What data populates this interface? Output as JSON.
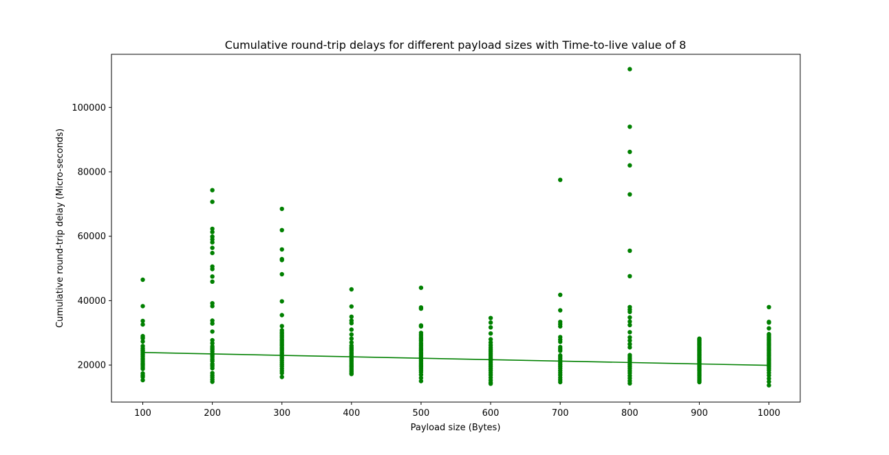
{
  "chart_data": {
    "type": "scatter",
    "title": "Cumulative round-trip delays for different payload sizes with Time-to-live value of 8",
    "xlabel": "Payload size (Bytes)",
    "ylabel": "Cumulative round-trip delay (Micro-seconds)",
    "xlim": [
      55,
      1045
    ],
    "ylim": [
      8500,
      116500
    ],
    "xticks": [
      100,
      200,
      300,
      400,
      500,
      600,
      700,
      800,
      900,
      1000
    ],
    "yticks": [
      20000,
      40000,
      60000,
      80000,
      100000
    ],
    "grid": false,
    "legend": "none",
    "marker_color": "#008000",
    "line_color": "#008000",
    "series": [
      {
        "x": 100,
        "values": [
          46500,
          38300,
          33700,
          32600,
          29000,
          28600,
          28300,
          27300,
          25900,
          25200,
          24600,
          24300,
          23800,
          23300,
          22700,
          22100,
          21600,
          21000,
          20400,
          20000,
          19400,
          18800,
          17400,
          16800,
          16300,
          15300
        ]
      },
      {
        "x": 200,
        "values": [
          74300,
          70700,
          62300,
          61300,
          59900,
          59000,
          58100,
          56400,
          54800,
          50600,
          49800,
          47500,
          45900,
          39200,
          38300,
          33800,
          32900,
          30400,
          27700,
          26800,
          25800,
          25300,
          24800,
          24200,
          23500,
          23000,
          22500,
          21800,
          21200,
          20300,
          19700,
          19000,
          17500,
          16800,
          16200,
          15500,
          14800
        ]
      },
      {
        "x": 300,
        "values": [
          68500,
          61900,
          55900,
          52900,
          52600,
          48200,
          39800,
          35500,
          32100,
          30800,
          30200,
          29700,
          29100,
          28600,
          28000,
          27500,
          27000,
          26500,
          26000,
          25500,
          25000,
          24500,
          24000,
          23500,
          23000,
          22500,
          22000,
          21400,
          20800,
          20200,
          19600,
          18900,
          18200,
          17500,
          16300
        ]
      },
      {
        "x": 400,
        "values": [
          43500,
          38200,
          35000,
          33800,
          33000,
          31000,
          29500,
          28200,
          27000,
          26000,
          25500,
          25000,
          24500,
          24000,
          23500,
          23000,
          22500,
          22000,
          21500,
          21000,
          20500,
          20000,
          19500,
          19000,
          18500,
          18000,
          17500,
          17200
        ]
      },
      {
        "x": 500,
        "values": [
          44000,
          37900,
          37500,
          32300,
          32000,
          30000,
          29300,
          28700,
          28100,
          27500,
          26800,
          26200,
          25600,
          25000,
          24500,
          24000,
          23500,
          23000,
          22500,
          22000,
          21500,
          21000,
          20500,
          20000,
          19500,
          19000,
          18400,
          17800,
          17000,
          16000,
          15000
        ]
      },
      {
        "x": 600,
        "values": [
          34600,
          33200,
          31700,
          29800,
          28000,
          27000,
          26200,
          25500,
          24900,
          24300,
          23700,
          23100,
          22500,
          21900,
          21300,
          20700,
          20100,
          19500,
          18900,
          18300,
          17600,
          16900,
          16100,
          15300,
          14600,
          14200
        ]
      },
      {
        "x": 700,
        "values": [
          77500,
          41800,
          37000,
          33400,
          32700,
          32000,
          28700,
          27900,
          27200,
          25600,
          25000,
          24400,
          23000,
          22500,
          22000,
          21400,
          20800,
          20200,
          19600,
          19000,
          18300,
          17600,
          16900,
          16100,
          15400,
          14700
        ]
      },
      {
        "x": 800,
        "values": [
          111900,
          94000,
          86200,
          82000,
          73000,
          55500,
          47600,
          38000,
          37200,
          36500,
          34800,
          33500,
          32400,
          30200,
          28600,
          27600,
          26500,
          25500,
          23100,
          22500,
          21900,
          21300,
          20700,
          20100,
          19500,
          18900,
          18200,
          17500,
          16700,
          15900,
          15100,
          14300
        ]
      },
      {
        "x": 900,
        "values": [
          28200,
          27900,
          27600,
          27300,
          27000,
          26700,
          26400,
          26100,
          25800,
          25500,
          25200,
          24900,
          24600,
          24300,
          24000,
          23700,
          23400,
          23100,
          22800,
          22500,
          22200,
          21900,
          21600,
          21300,
          21000,
          20600,
          20200,
          19800,
          19400,
          19000,
          18600,
          18200,
          17700,
          17200,
          16700,
          16200,
          15700,
          15200,
          14700
        ]
      },
      {
        "x": 1000,
        "values": [
          38000,
          33400,
          33200,
          31400,
          29600,
          29200,
          28800,
          28400,
          28000,
          27600,
          27200,
          26800,
          26400,
          26000,
          25600,
          25200,
          24800,
          24400,
          24000,
          23600,
          23200,
          22800,
          22400,
          22000,
          21600,
          21200,
          20800,
          20400,
          20000,
          19500,
          19000,
          18400,
          17600,
          16800,
          15800,
          14800,
          13700
        ]
      }
    ],
    "trendline": {
      "x": [
        100,
        1000
      ],
      "y": [
        23900,
        19900
      ]
    }
  }
}
